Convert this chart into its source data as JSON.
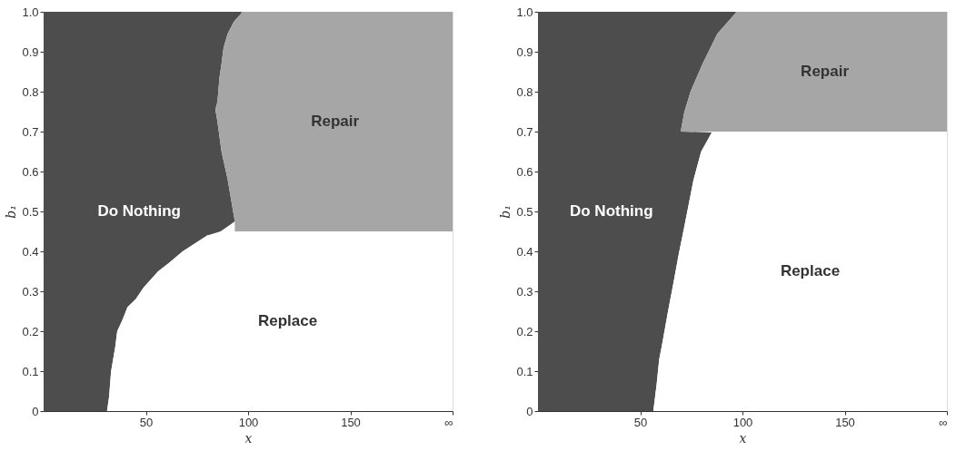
{
  "chart_data": [
    {
      "type": "area",
      "orientation": "horizontal",
      "stacked": true,
      "xlabel": "x",
      "ylabel": "b₁",
      "x": [
        0,
        0.035,
        0.1,
        0.16,
        0.2,
        0.23,
        0.26,
        0.28,
        0.31,
        0.35,
        0.37,
        0.4,
        0.42,
        0.44,
        0.45,
        0.45,
        0.475,
        0.58,
        0.65,
        0.725,
        0.755,
        0.775,
        0.835,
        0.87,
        0.91,
        0.945,
        0.975,
        0.995,
        1.0
      ],
      "series": [
        {
          "name": "Do Nothing",
          "color": "#4d4d4d",
          "values": [
            31,
            32,
            33,
            35,
            36,
            38.7,
            41,
            45,
            49,
            56,
            61,
            68,
            74,
            80,
            86.5,
            93.5,
            93.5,
            90,
            87,
            85,
            84,
            85,
            86,
            87,
            88,
            90,
            93,
            96.5,
            97
          ]
        },
        {
          "name": "Repair",
          "color": "#a6a6a6",
          "values": [
            null,
            null,
            null,
            null,
            null,
            null,
            null,
            null,
            null,
            null,
            null,
            null,
            null,
            null,
            null,
            106.5,
            106.5,
            110,
            113,
            115,
            116,
            115,
            114,
            113,
            112,
            110,
            107,
            103.5,
            103
          ]
        },
        {
          "name": "Replace",
          "color": "#ffffff",
          "values": [
            169,
            168,
            167,
            165,
            164,
            161.3,
            159,
            155,
            151,
            144,
            139,
            132,
            126,
            120,
            113.5,
            null,
            null,
            null,
            null,
            null,
            null,
            null,
            null,
            null,
            null,
            null,
            null,
            null,
            null
          ]
        }
      ],
      "xlim": [
        0,
        200
      ],
      "xticks": [
        50,
        100,
        150,
        {
          "value": 200,
          "label": "∞"
        }
      ],
      "ylim": [
        0,
        1
      ],
      "yticks": [
        0,
        0.1,
        0.2,
        0.3,
        0.4,
        0.5,
        0.6,
        0.7,
        0.8,
        0.9,
        {
          "value": 1,
          "label": "1.0"
        }
      ],
      "grid": false,
      "legend": false
    },
    {
      "type": "area",
      "orientation": "horizontal",
      "stacked": true,
      "xlabel": "x",
      "ylabel": "b₁",
      "x": [
        0,
        0.066,
        0.13,
        0.17,
        0.25,
        0.32,
        0.395,
        0.468,
        0.578,
        0.65,
        0.698,
        0.7,
        0.747,
        0.8,
        0.87,
        0.945,
        0.995,
        1.0
      ],
      "series": [
        {
          "name": "Do Nothing",
          "color": "#4d4d4d",
          "values": [
            56.4,
            58,
            59.3,
            60.8,
            63.6,
            66.2,
            68.9,
            71.8,
            76,
            79.8,
            85,
            69.8,
            71.5,
            74.6,
            80.5,
            87.7,
            96.3,
            97
          ]
        },
        {
          "name": "Repair",
          "color": "#a6a6a6",
          "values": [
            null,
            null,
            null,
            null,
            null,
            null,
            null,
            null,
            null,
            null,
            null,
            130.2,
            128.5,
            125.4,
            119.5,
            112.3,
            103.7,
            103
          ]
        },
        {
          "name": "Replace",
          "color": "#ffffff",
          "values": [
            143.6,
            142,
            140.7,
            139.2,
            136.4,
            133.8,
            131.1,
            128.2,
            124,
            120.2,
            115,
            null,
            null,
            null,
            null,
            null,
            null,
            null
          ]
        }
      ],
      "xlim": [
        0,
        200
      ],
      "xticks": [
        50,
        100,
        150,
        {
          "value": 200,
          "label": "∞"
        }
      ],
      "ylim": [
        0,
        1
      ],
      "yticks": [
        0,
        0.1,
        0.2,
        0.3,
        0.4,
        0.5,
        0.6,
        0.7,
        0.8,
        0.9,
        {
          "value": 1,
          "label": "1.0"
        }
      ],
      "grid": false,
      "legend": false
    }
  ]
}
